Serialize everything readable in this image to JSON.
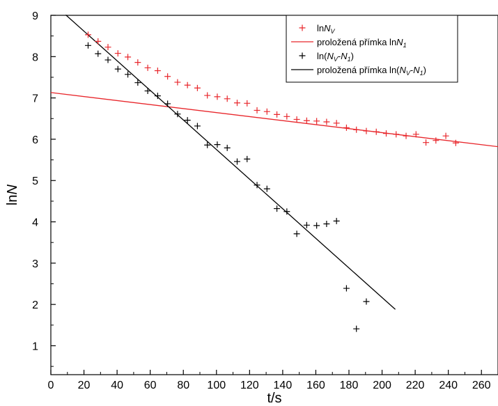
{
  "chart_data": {
    "type": "scatter",
    "xlabel": "t/s",
    "ylabel": "lnN",
    "ylabel_parts": [
      "ln",
      "N"
    ],
    "xlim": [
      0,
      270
    ],
    "ylim": [
      0.3,
      9
    ],
    "x_ticks": [
      0,
      20,
      40,
      60,
      80,
      100,
      120,
      140,
      160,
      180,
      200,
      220,
      240,
      260
    ],
    "y_ticks": [
      1,
      2,
      3,
      4,
      5,
      6,
      7,
      8,
      9
    ],
    "grid": false,
    "legend_position": "top-right",
    "legend": [
      {
        "id": "lnNv",
        "parts": [
          {
            "t": "ln"
          },
          {
            "t": "N",
            "i": true
          },
          {
            "t": "V",
            "i": true,
            "sub": true
          }
        ]
      },
      {
        "id": "fit1",
        "parts": [
          {
            "t": "proložená přímka ln"
          },
          {
            "t": "N",
            "i": true
          },
          {
            "t": "1",
            "i": true,
            "sub": true
          }
        ]
      },
      {
        "id": "lnDiff",
        "parts": [
          {
            "t": "ln("
          },
          {
            "t": "N",
            "i": true
          },
          {
            "t": "V",
            "i": true,
            "sub": true
          },
          {
            "t": "-"
          },
          {
            "t": "N",
            "i": true
          },
          {
            "t": "1",
            "i": true,
            "sub": true
          },
          {
            "t": ")"
          }
        ]
      },
      {
        "id": "fit2",
        "parts": [
          {
            "t": "proložená přímka ln("
          },
          {
            "t": "N",
            "i": true
          },
          {
            "t": "V",
            "i": true,
            "sub": true
          },
          {
            "t": "-"
          },
          {
            "t": "N",
            "i": true
          },
          {
            "t": "1",
            "i": true,
            "sub": true
          },
          {
            "t": ")"
          }
        ]
      }
    ],
    "colors": {
      "lnNv": "#e8262b",
      "fit1": "#e8262b",
      "lnDiff": "#000000",
      "fit2": "#000000"
    },
    "series": [
      {
        "id": "lnNv",
        "kind": "markers",
        "marker": "plus",
        "points": [
          [
            22.5,
            8.53
          ],
          [
            28.5,
            8.37
          ],
          [
            34.5,
            8.23
          ],
          [
            40.5,
            8.08
          ],
          [
            46.5,
            7.99
          ],
          [
            52.5,
            7.86
          ],
          [
            58.5,
            7.73
          ],
          [
            64.5,
            7.66
          ],
          [
            70.5,
            7.52
          ],
          [
            76.5,
            7.38
          ],
          [
            82.5,
            7.31
          ],
          [
            88.5,
            7.24
          ],
          [
            94.5,
            7.06
          ],
          [
            100.5,
            7.03
          ],
          [
            106.5,
            6.98
          ],
          [
            112.5,
            6.88
          ],
          [
            118.5,
            6.87
          ],
          [
            124.5,
            6.7
          ],
          [
            130.5,
            6.67
          ],
          [
            136.5,
            6.6
          ],
          [
            142.5,
            6.55
          ],
          [
            148.5,
            6.48
          ],
          [
            154.5,
            6.45
          ],
          [
            160.5,
            6.44
          ],
          [
            166.5,
            6.42
          ],
          [
            172.5,
            6.39
          ],
          [
            178.5,
            6.28
          ],
          [
            184.5,
            6.23
          ],
          [
            190.5,
            6.2
          ],
          [
            196.5,
            6.18
          ],
          [
            202.5,
            6.14
          ],
          [
            208.5,
            6.12
          ],
          [
            214.5,
            6.08
          ],
          [
            220.5,
            6.12
          ],
          [
            226.5,
            5.92
          ],
          [
            232.5,
            5.97
          ],
          [
            238.5,
            6.08
          ],
          [
            244.5,
            5.91
          ]
        ]
      },
      {
        "id": "fit1",
        "kind": "line",
        "points": [
          [
            0,
            7.13
          ],
          [
            270,
            5.82
          ]
        ]
      },
      {
        "id": "lnDiff",
        "kind": "markers",
        "marker": "plus",
        "points": [
          [
            22.5,
            8.27
          ],
          [
            28.5,
            8.07
          ],
          [
            34.5,
            7.92
          ],
          [
            40.5,
            7.7
          ],
          [
            46.5,
            7.57
          ],
          [
            52.5,
            7.37
          ],
          [
            58.5,
            7.17
          ],
          [
            64.5,
            7.05
          ],
          [
            70.5,
            6.86
          ],
          [
            76.5,
            6.61
          ],
          [
            82.5,
            6.46
          ],
          [
            88.5,
            6.32
          ],
          [
            94.5,
            5.86
          ],
          [
            100.5,
            5.87
          ],
          [
            106.5,
            5.79
          ],
          [
            112.5,
            5.46
          ],
          [
            118.5,
            5.52
          ],
          [
            124.5,
            4.89
          ],
          [
            130.5,
            4.8
          ],
          [
            136.5,
            4.32
          ],
          [
            142.5,
            4.25
          ],
          [
            148.5,
            3.71
          ],
          [
            154.5,
            3.92
          ],
          [
            160.5,
            3.91
          ],
          [
            166.5,
            3.95
          ],
          [
            172.5,
            4.02
          ],
          [
            178.5,
            2.39
          ],
          [
            184.5,
            1.41
          ],
          [
            190.5,
            2.07
          ]
        ]
      },
      {
        "id": "fit2",
        "kind": "line",
        "points": [
          [
            9,
            9.01
          ],
          [
            208,
            1.88
          ]
        ]
      }
    ]
  }
}
